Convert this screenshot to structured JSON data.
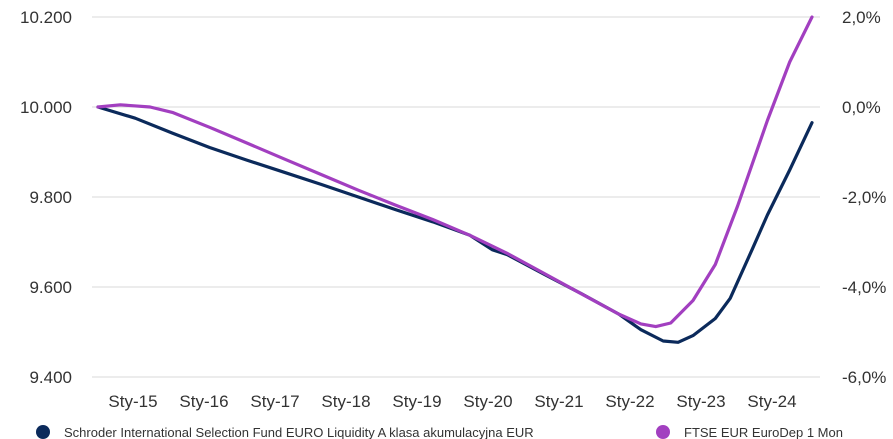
{
  "chart_data": {
    "type": "line",
    "title": "",
    "xlabel": "",
    "ylabel": "",
    "x_ticks": [
      "Sty-15",
      "Sty-16",
      "Sty-17",
      "Sty-18",
      "Sty-19",
      "Sty-20",
      "Sty-21",
      "Sty-22",
      "Sty-23",
      "Sty-24"
    ],
    "y_left": {
      "ticks": [
        "10.200",
        "10.000",
        "9.800",
        "9.600",
        "9.400"
      ],
      "range": [
        9.4,
        10.2
      ]
    },
    "y_right": {
      "ticks": [
        "2,0%",
        "0,0%",
        "-2,0%",
        "-4,0%",
        "-6,0%"
      ],
      "range": [
        -6.0,
        2.0
      ]
    },
    "grid": true,
    "legend_position": "bottom",
    "series": [
      {
        "name": "Schroder International Selection Fund EURO Liquidity A klasa akumulacyjna EUR",
        "color": "#0b2a5b",
        "axis": "left",
        "x": [
          2015.0,
          2015.5,
          2016.0,
          2016.5,
          2017.0,
          2017.5,
          2018.0,
          2018.5,
          2019.0,
          2019.5,
          2020.0,
          2020.3,
          2020.5,
          2021.0,
          2021.5,
          2022.0,
          2022.3,
          2022.6,
          2022.8,
          2023.0,
          2023.3,
          2023.5,
          2023.8,
          2024.0,
          2024.3,
          2024.6
        ],
        "y": [
          10.0,
          9.975,
          9.942,
          9.91,
          9.882,
          9.855,
          9.828,
          9.8,
          9.772,
          9.745,
          9.715,
          9.683,
          9.672,
          9.628,
          9.585,
          9.54,
          9.505,
          9.48,
          9.477,
          9.492,
          9.53,
          9.575,
          9.685,
          9.76,
          9.86,
          9.965
        ]
      },
      {
        "name": "FTSE EUR EuroDep 1 Mon",
        "color": "#a23fc0",
        "axis": "right",
        "x": [
          2015.0,
          2015.3,
          2015.7,
          2016.0,
          2016.5,
          2017.0,
          2017.5,
          2018.0,
          2018.5,
          2019.0,
          2019.5,
          2020.0,
          2020.5,
          2021.0,
          2021.5,
          2022.0,
          2022.3,
          2022.5,
          2022.7,
          2023.0,
          2023.3,
          2023.6,
          2024.0,
          2024.3,
          2024.6
        ],
        "y": [
          0.0,
          0.05,
          0.0,
          -0.12,
          -0.45,
          -0.8,
          -1.15,
          -1.5,
          -1.85,
          -2.18,
          -2.5,
          -2.85,
          -3.25,
          -3.7,
          -4.15,
          -4.6,
          -4.82,
          -4.88,
          -4.8,
          -4.3,
          -3.5,
          -2.2,
          -0.3,
          1.0,
          2.0
        ]
      }
    ]
  }
}
